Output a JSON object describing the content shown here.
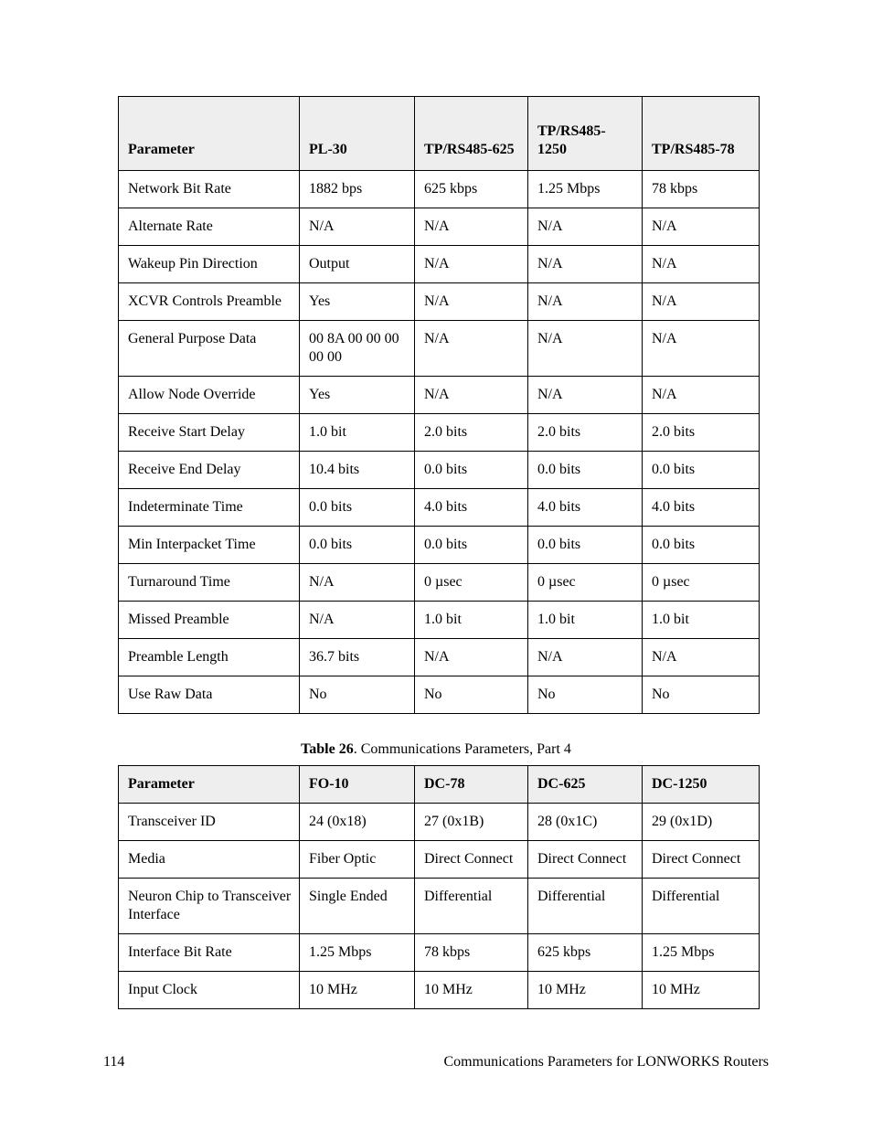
{
  "table1": {
    "columns": [
      "Parameter",
      "PL-30",
      "TP/RS485-625",
      "TP/RS485-1250",
      "TP/RS485-78"
    ],
    "rows": [
      [
        "Network Bit Rate",
        "1882 bps",
        "625 kbps",
        "1.25 Mbps",
        "78 kbps"
      ],
      [
        "Alternate Rate",
        "N/A",
        "N/A",
        "N/A",
        "N/A"
      ],
      [
        "Wakeup Pin Direction",
        "Output",
        "N/A",
        "N/A",
        "N/A"
      ],
      [
        "XCVR Controls Preamble",
        "Yes",
        "N/A",
        "N/A",
        "N/A"
      ],
      [
        "General Purpose Data",
        "00 8A 00 00 00 00 00",
        "N/A",
        "N/A",
        "N/A"
      ],
      [
        "Allow Node Override",
        "Yes",
        "N/A",
        "N/A",
        "N/A"
      ],
      [
        "Receive Start Delay",
        "1.0 bit",
        "2.0 bits",
        "2.0 bits",
        "2.0 bits"
      ],
      [
        "Receive End Delay",
        "10.4 bits",
        "0.0 bits",
        "0.0 bits",
        "0.0 bits"
      ],
      [
        "Indeterminate Time",
        "0.0 bits",
        "4.0 bits",
        "4.0 bits",
        "4.0 bits"
      ],
      [
        "Min Interpacket Time",
        "0.0 bits",
        "0.0 bits",
        "0.0 bits",
        "0.0 bits"
      ],
      [
        "Turnaround Time",
        "N/A",
        "0 µsec",
        "0 µsec",
        "0 µsec"
      ],
      [
        "Missed Preamble",
        "N/A",
        "1.0 bit",
        "1.0 bit",
        "1.0 bit"
      ],
      [
        "Preamble Length",
        "36.7 bits",
        "N/A",
        "N/A",
        "N/A"
      ],
      [
        "Use Raw Data",
        "No",
        "No",
        "No",
        "No"
      ]
    ]
  },
  "caption": {
    "bold": "Table 26",
    "rest": ". Communications Parameters, Part 4"
  },
  "table2": {
    "columns": [
      "Parameter",
      "FO-10",
      "DC-78",
      "DC-625",
      "DC-1250"
    ],
    "rows": [
      [
        "Transceiver ID",
        "24 (0x18)",
        "27 (0x1B)",
        "28 (0x1C)",
        "29 (0x1D)"
      ],
      [
        "Media",
        "Fiber Optic",
        "Direct Connect",
        "Direct Connect",
        "Direct Connect"
      ],
      [
        "Neuron Chip to Transceiver Interface",
        "Single Ended",
        "Differential",
        "Differential",
        "Differential"
      ],
      [
        "Interface Bit Rate",
        "1.25 Mbps",
        "78 kbps",
        "625 kbps",
        "1.25 Mbps"
      ],
      [
        "Input Clock",
        "10 MHz",
        "10 MHz",
        "10 MHz",
        "10 MHz"
      ]
    ]
  },
  "footer": {
    "page_number": "114",
    "title": "Communications Parameters for LONWORKS Routers"
  }
}
